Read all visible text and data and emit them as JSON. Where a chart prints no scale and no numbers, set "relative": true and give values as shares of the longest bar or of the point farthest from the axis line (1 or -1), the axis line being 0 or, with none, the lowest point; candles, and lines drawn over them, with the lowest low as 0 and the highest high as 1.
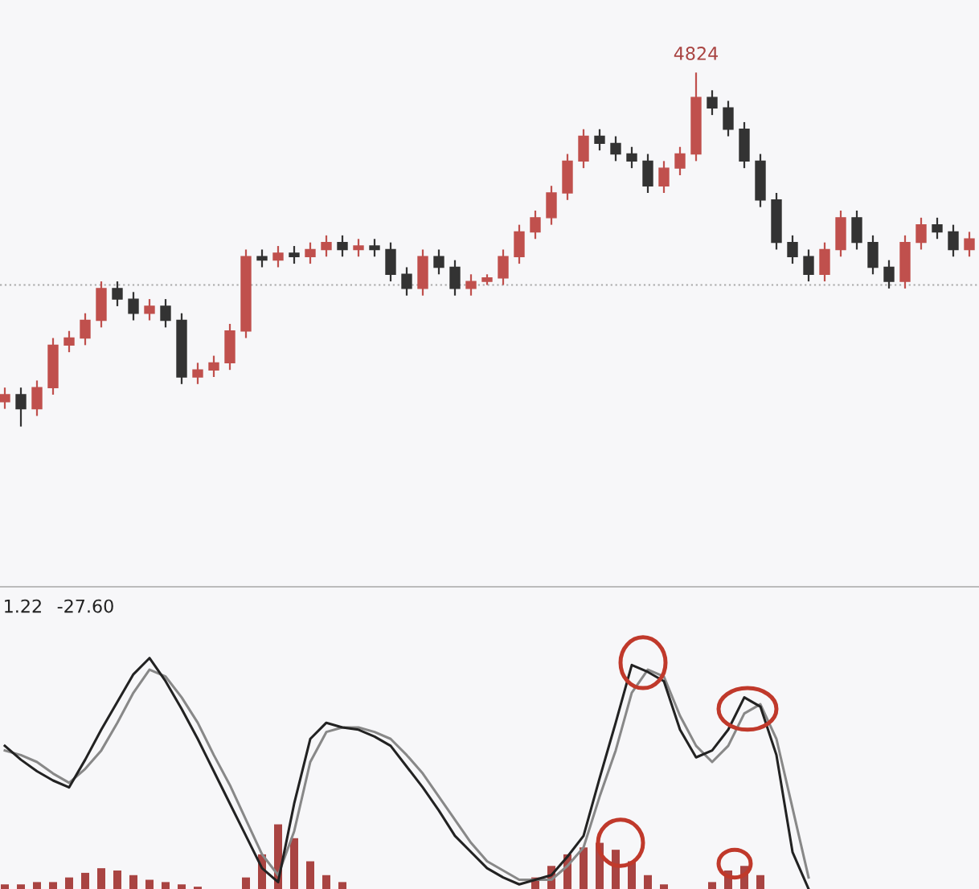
{
  "chart_data": [
    {
      "type": "candlestick",
      "relative": true,
      "categories": [
        null,
        null,
        null,
        null,
        null,
        null,
        null,
        null,
        null,
        null,
        null,
        null,
        null,
        null,
        null,
        null,
        null,
        null,
        null,
        null,
        null,
        null,
        null,
        null,
        null,
        null,
        null,
        null,
        null,
        null,
        null,
        null,
        null,
        null,
        null,
        null,
        null,
        null,
        null,
        null,
        null,
        null,
        null,
        null,
        null,
        null,
        null,
        null,
        null,
        null,
        null,
        null,
        null,
        null,
        null,
        null,
        null,
        null,
        null,
        null,
        null
      ],
      "ohlc": [
        [
          0.07,
          0.11,
          0.05,
          0.09
        ],
        [
          0.09,
          0.11,
          0,
          0.05
        ],
        [
          0.05,
          0.13,
          0.03,
          0.11
        ],
        [
          0.11,
          0.25,
          0.09,
          0.23
        ],
        [
          0.23,
          0.27,
          0.21,
          0.25
        ],
        [
          0.25,
          0.32,
          0.23,
          0.3
        ],
        [
          0.3,
          0.41,
          0.28,
          0.39
        ],
        [
          0.39,
          0.41,
          0.34,
          0.36
        ],
        [
          0.36,
          0.38,
          0.3,
          0.32
        ],
        [
          0.32,
          0.36,
          0.3,
          0.34
        ],
        [
          0.34,
          0.36,
          0.28,
          0.3
        ],
        [
          0.3,
          0.32,
          0.12,
          0.14
        ],
        [
          0.14,
          0.18,
          0.12,
          0.16
        ],
        [
          0.16,
          0.2,
          0.14,
          0.18
        ],
        [
          0.18,
          0.29,
          0.16,
          0.27
        ],
        [
          0.27,
          0.5,
          0.25,
          0.48
        ],
        [
          0.48,
          0.5,
          0.45,
          0.47
        ],
        [
          0.47,
          0.51,
          0.45,
          0.49
        ],
        [
          0.49,
          0.51,
          0.46,
          0.48
        ],
        [
          0.48,
          0.52,
          0.46,
          0.5
        ],
        [
          0.5,
          0.54,
          0.48,
          0.52
        ],
        [
          0.52,
          0.54,
          0.48,
          0.5
        ],
        [
          0.5,
          0.53,
          0.48,
          0.51
        ],
        [
          0.51,
          0.53,
          0.48,
          0.5
        ],
        [
          0.5,
          0.52,
          0.41,
          0.43
        ],
        [
          0.43,
          0.45,
          0.37,
          0.39
        ],
        [
          0.39,
          0.5,
          0.37,
          0.48
        ],
        [
          0.48,
          0.5,
          0.43,
          0.45
        ],
        [
          0.45,
          0.47,
          0.37,
          0.39
        ],
        [
          0.39,
          0.43,
          0.37,
          0.41
        ],
        [
          0.41,
          0.43,
          0.4,
          0.42
        ],
        [
          0.42,
          0.5,
          0.4,
          0.48
        ],
        [
          0.48,
          0.57,
          0.46,
          0.55
        ],
        [
          0.55,
          0.61,
          0.53,
          0.59
        ],
        [
          0.59,
          0.68,
          0.57,
          0.66
        ],
        [
          0.66,
          0.77,
          0.64,
          0.75
        ],
        [
          0.75,
          0.84,
          0.73,
          0.82
        ],
        [
          0.82,
          0.84,
          0.78,
          0.8
        ],
        [
          0.8,
          0.82,
          0.75,
          0.77
        ],
        [
          0.77,
          0.79,
          0.73,
          0.75
        ],
        [
          0.75,
          0.77,
          0.66,
          0.68
        ],
        [
          0.68,
          0.75,
          0.66,
          0.73
        ],
        [
          0.73,
          0.79,
          0.71,
          0.77
        ],
        [
          0.77,
          1.0,
          0.75,
          0.93
        ],
        [
          0.93,
          0.95,
          0.88,
          0.9
        ],
        [
          0.9,
          0.92,
          0.82,
          0.84
        ],
        [
          0.84,
          0.86,
          0.73,
          0.75
        ],
        [
          0.75,
          0.77,
          0.62,
          0.64
        ],
        [
          0.64,
          0.66,
          0.5,
          0.52
        ],
        [
          0.52,
          0.54,
          0.46,
          0.48
        ],
        [
          0.48,
          0.5,
          0.41,
          0.43
        ],
        [
          0.43,
          0.52,
          0.41,
          0.5
        ],
        [
          0.5,
          0.61,
          0.48,
          0.59
        ],
        [
          0.59,
          0.61,
          0.5,
          0.52
        ],
        [
          0.52,
          0.54,
          0.43,
          0.45
        ],
        [
          0.45,
          0.47,
          0.39,
          0.41
        ],
        [
          0.41,
          0.54,
          0.39,
          0.52
        ],
        [
          0.52,
          0.59,
          0.5,
          0.57
        ],
        [
          0.57,
          0.59,
          0.53,
          0.55
        ],
        [
          0.55,
          0.57,
          0.48,
          0.5
        ],
        [
          0.5,
          0.55,
          0.48,
          0.53
        ]
      ],
      "colors": [
        "#c0504d",
        "#333333",
        "#c0504d",
        "#c0504d",
        "#c0504d",
        "#c0504d",
        "#c0504d",
        "#333333",
        "#333333",
        "#c0504d",
        "#333333",
        "#333333",
        "#c0504d",
        "#c0504d",
        "#c0504d",
        "#c0504d",
        "#333333",
        "#c0504d",
        "#333333",
        "#c0504d",
        "#c0504d",
        "#333333",
        "#c0504d",
        "#333333",
        "#333333",
        "#333333",
        "#c0504d",
        "#333333",
        "#333333",
        "#c0504d",
        "#c0504d",
        "#c0504d",
        "#c0504d",
        "#c0504d",
        "#c0504d",
        "#c0504d",
        "#c0504d",
        "#333333",
        "#333333",
        "#333333",
        "#333333",
        "#c0504d",
        "#c0504d",
        "#c0504d",
        "#333333",
        "#333333",
        "#333333",
        "#333333",
        "#333333",
        "#333333",
        "#333333",
        "#c0504d",
        "#c0504d",
        "#333333",
        "#333333",
        "#333333",
        "#c0504d",
        "#c0504d",
        "#333333",
        "#333333",
        "#c0504d"
      ],
      "ref_lines": [
        {
          "axis": "y",
          "value": 0.4,
          "color": "#aaaaaa",
          "line_style": "dotted"
        }
      ],
      "annotations": [
        "4824"
      ]
    },
    {
      "type": "line",
      "relative": true,
      "marker": "none",
      "categories": [
        null,
        null,
        null,
        null,
        null,
        null,
        null,
        null,
        null,
        null,
        null,
        null,
        null,
        null,
        null,
        null,
        null,
        null,
        null,
        null,
        null,
        null,
        null,
        null,
        null,
        null,
        null,
        null,
        null,
        null,
        null,
        null,
        null,
        null,
        null,
        null,
        null,
        null,
        null,
        null,
        null,
        null,
        null,
        null,
        null,
        null,
        null,
        null,
        null,
        null,
        null,
        null,
        null,
        null,
        null,
        null,
        null,
        null,
        null,
        null,
        null
      ],
      "series": [
        {
          "type": "bar",
          "color": "#a94442",
          "values": [
            0.02,
            0.02,
            0.03,
            0.03,
            0.05,
            0.07,
            0.09,
            0.08,
            0.06,
            0.04,
            0.03,
            0.02,
            0.01,
            0,
            0,
            0.05,
            0.15,
            0.28,
            0.22,
            0.12,
            0.06,
            0.03,
            0,
            0,
            0,
            0,
            0,
            0,
            0,
            0,
            0,
            0,
            0,
            0.05,
            0.1,
            0.15,
            0.18,
            0.2,
            0.17,
            0.12,
            0.06,
            0.02,
            0,
            0,
            0.03,
            0.08,
            0.1,
            0.06,
            0,
            0,
            0,
            0,
            0,
            0,
            0,
            0,
            0,
            0,
            0,
            0,
            0
          ]
        },
        {
          "type": "line",
          "color": "#888888",
          "values": [
            0.6,
            0.58,
            0.55,
            0.5,
            0.46,
            0.52,
            0.6,
            0.72,
            0.85,
            0.95,
            0.92,
            0.83,
            0.72,
            0.58,
            0.45,
            0.3,
            0.15,
            0.06,
            0.25,
            0.55,
            0.68,
            0.7,
            0.7,
            0.68,
            0.65,
            0.58,
            0.5,
            0.4,
            0.3,
            0.2,
            0.12,
            0.08,
            0.04,
            0.04,
            0.04,
            0.1,
            0.18,
            0.4,
            0.6,
            0.85,
            0.95,
            0.92,
            0.75,
            0.62,
            0.55,
            0.62,
            0.76,
            0.8,
            0.65,
            0.35,
            0.05,
            null,
            null,
            null,
            null,
            null,
            null,
            null,
            null,
            null,
            null
          ]
        },
        {
          "type": "line",
          "color": "#222222",
          "values": [
            0.62,
            0.56,
            0.51,
            0.47,
            0.44,
            0.56,
            0.69,
            0.81,
            0.93,
            1.0,
            0.9,
            0.78,
            0.65,
            0.51,
            0.37,
            0.23,
            0.09,
            0.03,
            0.37,
            0.65,
            0.72,
            0.7,
            0.69,
            0.66,
            0.62,
            0.53,
            0.44,
            0.34,
            0.23,
            0.16,
            0.09,
            0.05,
            0.02,
            0.04,
            0.06,
            0.14,
            0.23,
            0.48,
            0.72,
            0.97,
            0.94,
            0.9,
            0.69,
            0.57,
            0.6,
            0.69,
            0.83,
            0.79,
            0.58,
            0.16,
            0.0,
            null,
            null,
            null,
            null,
            null,
            null,
            null,
            null,
            null,
            null
          ]
        }
      ],
      "annotations": [
        "1.22",
        "-27.60"
      ]
    }
  ]
}
